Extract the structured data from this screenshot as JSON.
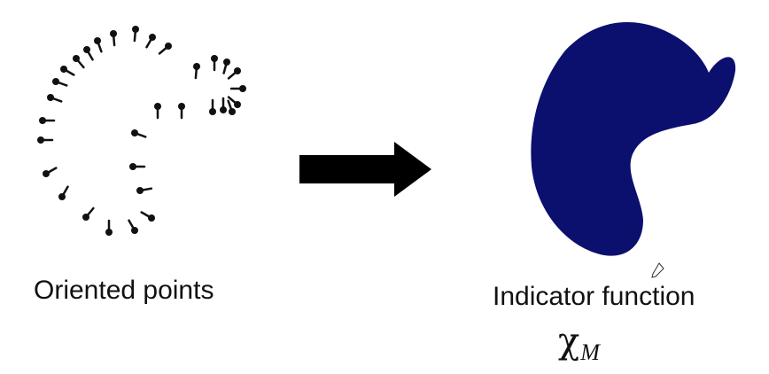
{
  "left_panel": {
    "caption": "Oriented points"
  },
  "right_panel": {
    "caption": "Indicator function",
    "symbol": "χ",
    "symbol_subscript": "M",
    "shape_color": "#0b0f6e"
  },
  "arrow_color": "#000000",
  "point_color": "#111111"
}
